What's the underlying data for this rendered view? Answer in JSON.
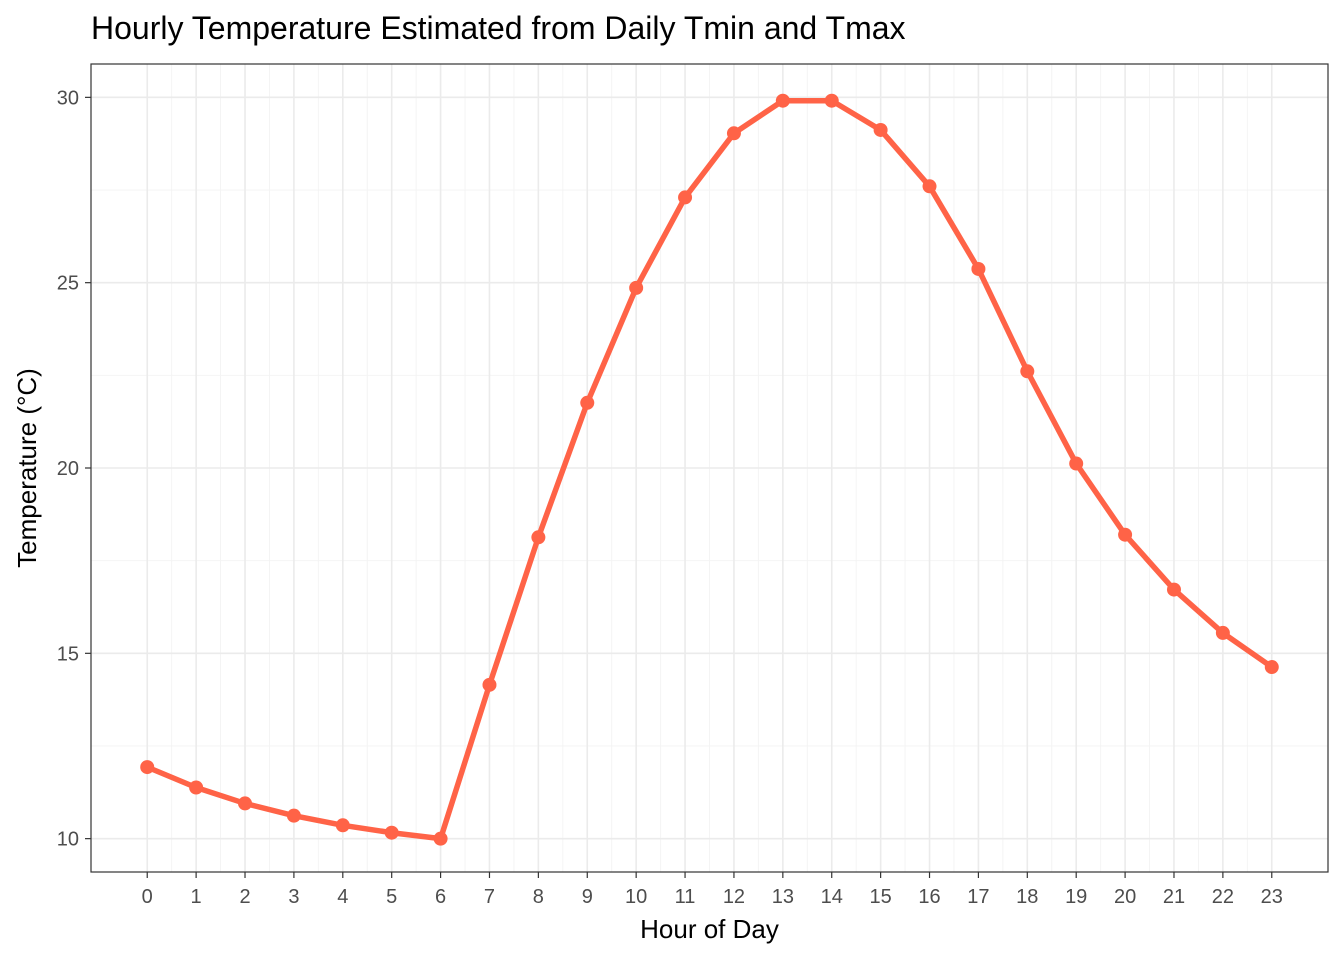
{
  "chart_data": {
    "type": "line",
    "title": "Hourly Temperature Estimated from Daily Tmin and Tmax",
    "xlabel": "Hour of Day",
    "ylabel": "Temperature (°C)",
    "x": [
      0,
      1,
      2,
      3,
      4,
      5,
      6,
      7,
      8,
      9,
      10,
      11,
      12,
      13,
      14,
      15,
      16,
      17,
      18,
      19,
      20,
      21,
      22,
      23
    ],
    "series": [
      {
        "values": [
          11.93,
          11.38,
          10.95,
          10.62,
          10.36,
          10.16,
          10.0,
          14.15,
          18.13,
          21.76,
          24.86,
          27.3,
          29.03,
          29.91,
          29.91,
          29.12,
          27.6,
          25.37,
          22.61,
          20.12,
          18.2,
          16.72,
          15.55,
          14.63
        ],
        "color": "#FF6347"
      }
    ],
    "xticks": [
      "0",
      "1",
      "2",
      "3",
      "4",
      "5",
      "6",
      "7",
      "8",
      "9",
      "10",
      "11",
      "12",
      "13",
      "14",
      "15",
      "16",
      "17",
      "18",
      "19",
      "20",
      "21",
      "22",
      "23"
    ],
    "yticks": [
      "10",
      "15",
      "20",
      "25",
      "30"
    ],
    "xlim": [
      -1.15,
      24.15
    ],
    "ylim": [
      9.1,
      30.9
    ],
    "grid": true,
    "legend": "none"
  }
}
